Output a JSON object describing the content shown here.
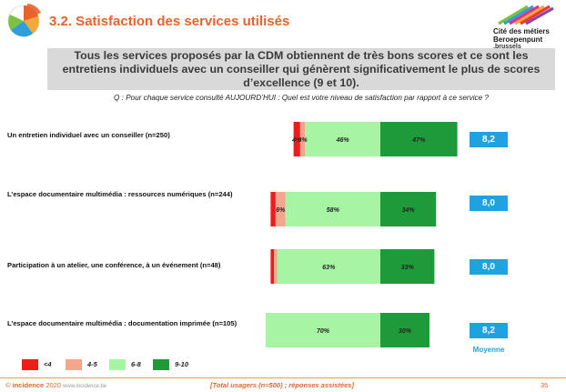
{
  "title": "3.2.  Satisfaction des services utilisés",
  "logo": {
    "name_line1": "Cité des métiers",
    "name_line2": "Beroepenpunt",
    "brand": ".brussels"
  },
  "subtitle_lines": [
    "Tous les services proposés par la CDM obtiennent de très bons scores et ce sont les",
    "entretiens individuels avec un conseiller qui génèrent significativement le plus de scores",
    "d’excellence (9 et 10)."
  ],
  "question": "Q : Pour chaque service consulté AUJOURD’HUI : Quel est votre niveau de satisfaction par rapport à ce service ?",
  "colors": {
    "lt4": "#ee1c1c",
    "s45": "#f3a58e",
    "s68": "#a6f5a2",
    "s910": "#1f9a3a",
    "score_box": "#1ea3e0"
  },
  "chart_data": {
    "type": "bar",
    "orientation": "horizontal",
    "stacked": true,
    "diverging": true,
    "categories": [
      "Un entretien individuel avec un conseiller (n=250)",
      "L’espace documentaire multimédia : ressources numériques (n=244)",
      "Participation à un atelier, une conférence, à un événement (n=48)",
      "L’espace documentaire multimédia : documentation imprimée (n=105)"
    ],
    "series": [
      {
        "name": "<4",
        "values": [
          4,
          3,
          2,
          0
        ],
        "labels": [
          "4%",
          "",
          "",
          ""
        ]
      },
      {
        "name": "4-5",
        "values": [
          3,
          6,
          2,
          0
        ],
        "labels": [
          "3%",
          "6%",
          "",
          ""
        ]
      },
      {
        "name": "6-8",
        "values": [
          46,
          58,
          63,
          70
        ],
        "labels": [
          "46%",
          "58%",
          "63%",
          "70%"
        ]
      },
      {
        "name": "9-10",
        "values": [
          47,
          34,
          33,
          30
        ],
        "labels": [
          "47%",
          "34%",
          "33%",
          "30%"
        ]
      }
    ],
    "scores": [
      "8,2",
      "8,0",
      "8,0",
      "8,2"
    ],
    "score_label": "Moyenne",
    "legend_placement": "bottom-left"
  },
  "footer": {
    "brand": "incidence",
    "year": "2020",
    "site": "www.incidence.be",
    "center": "[Total usagers (n=500) ; réponses assistées]",
    "page": "35"
  }
}
